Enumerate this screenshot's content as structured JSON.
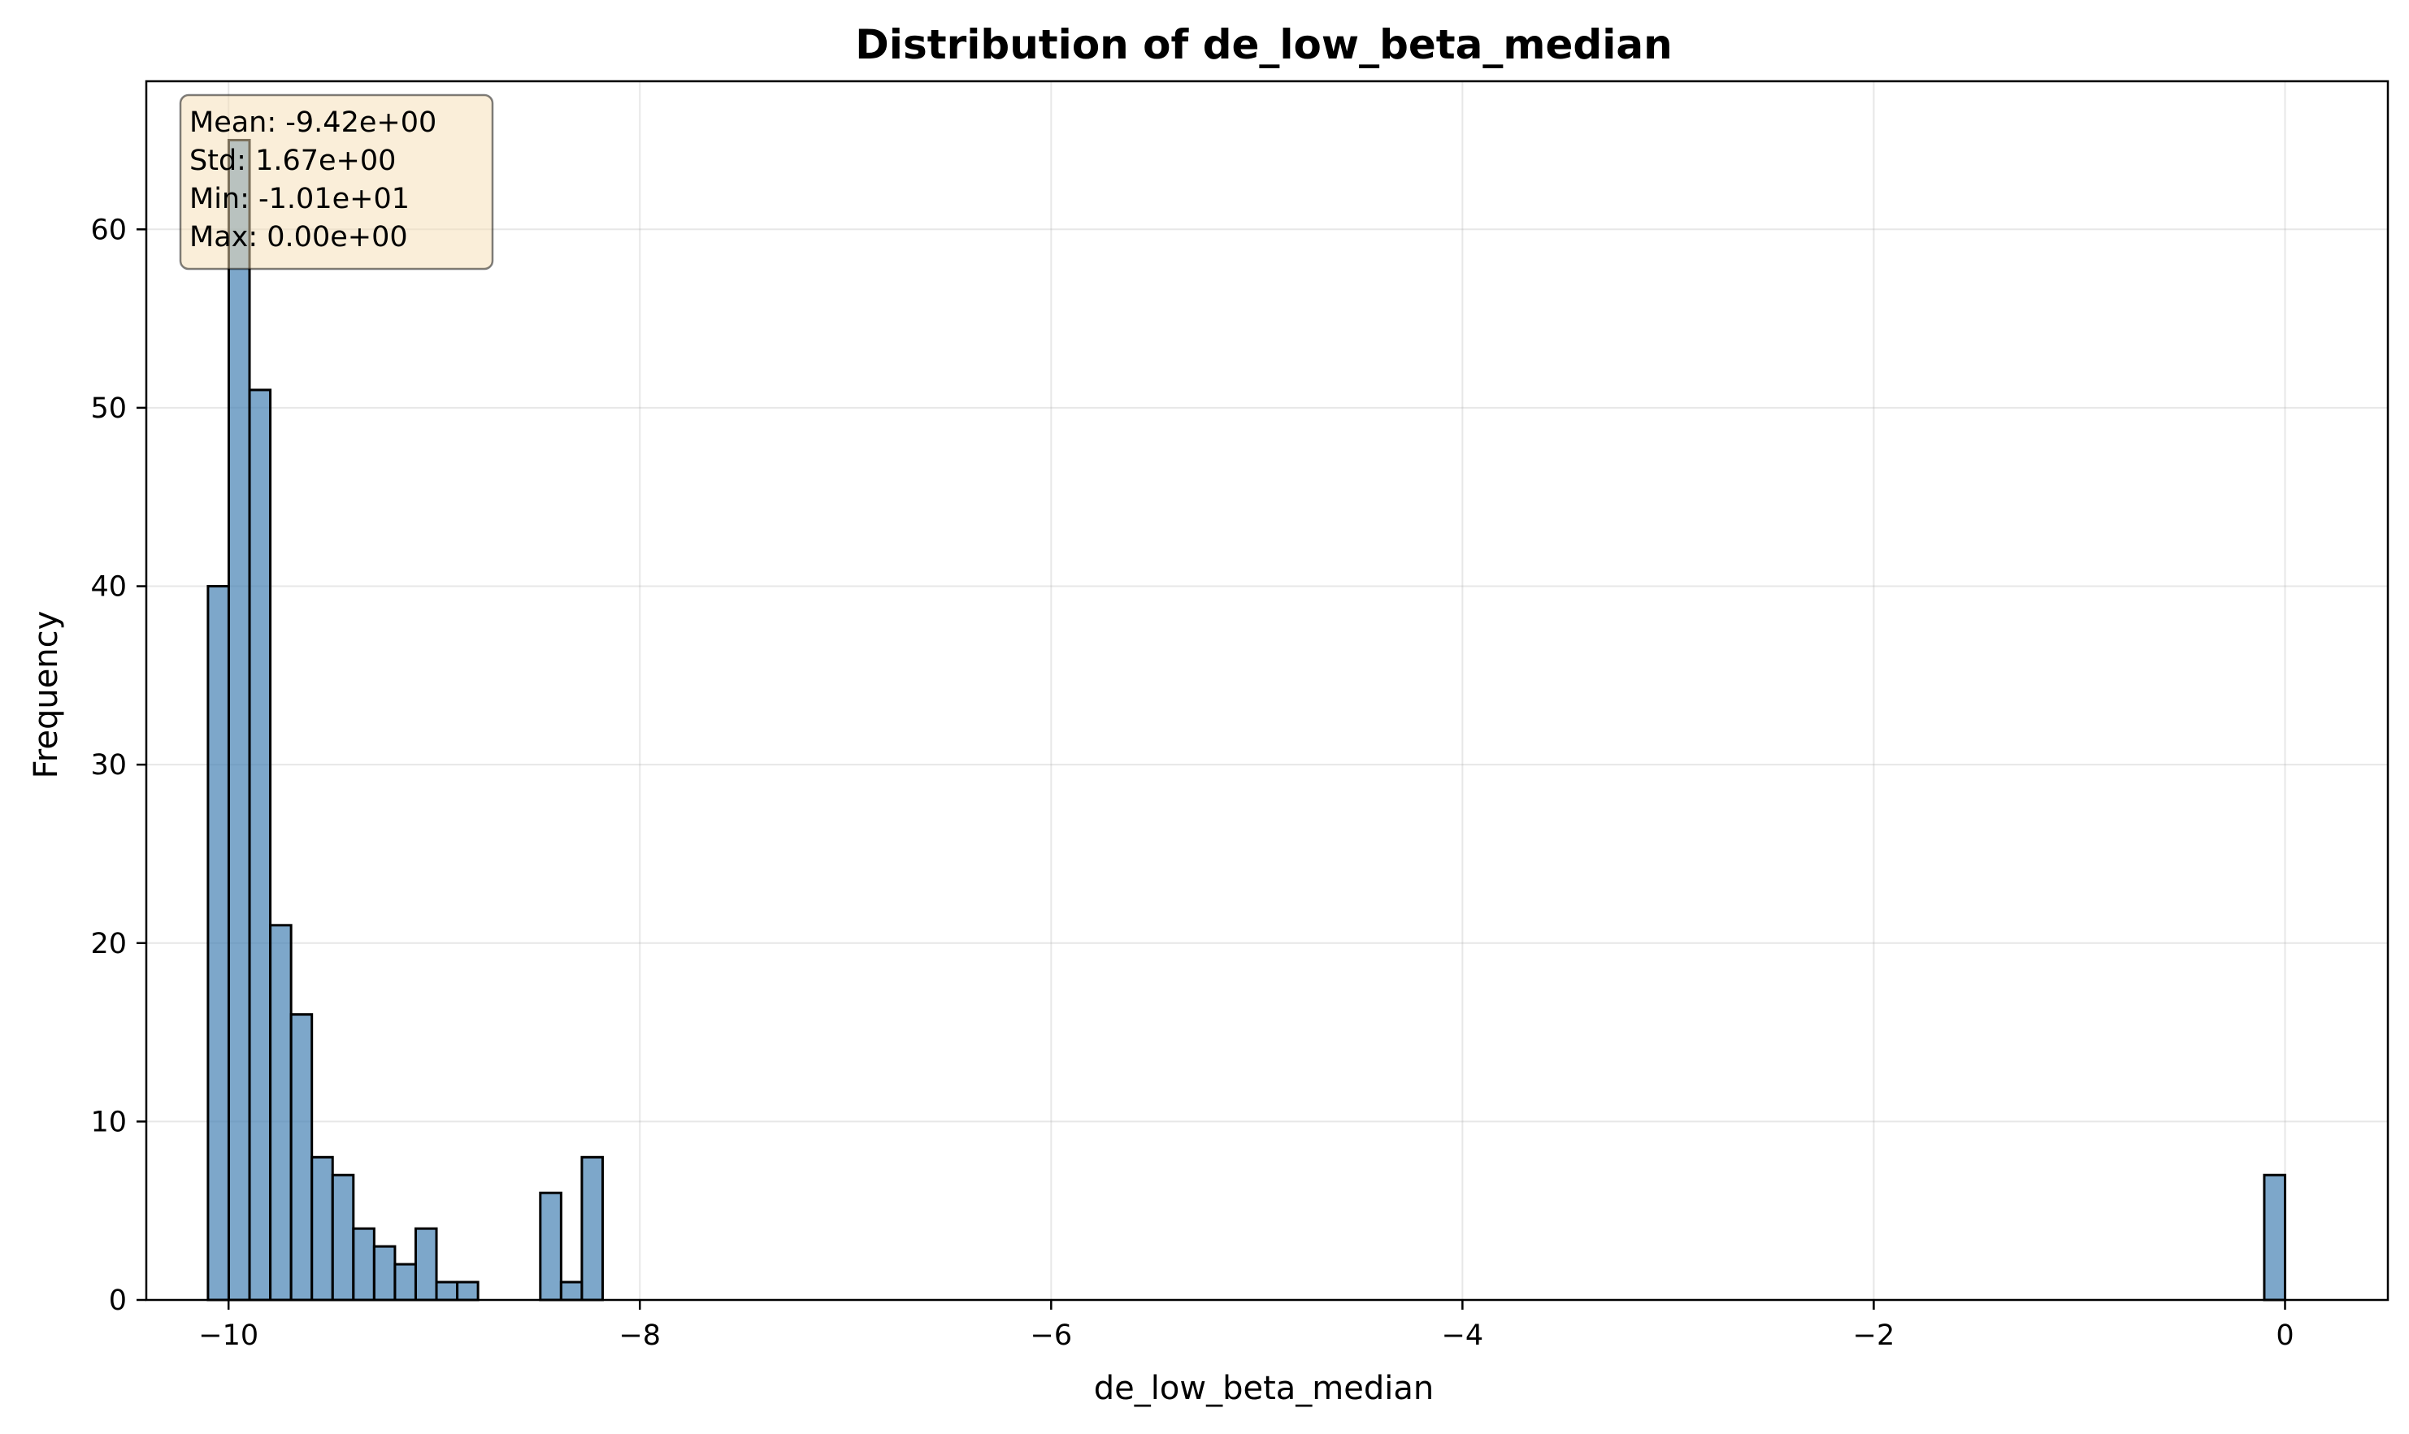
{
  "chart_data": {
    "type": "bar",
    "title": "Distribution of de_low_beta_median",
    "xlabel": "de_low_beta_median",
    "ylabel": "Frequency",
    "xlim": [
      -10.4,
      0.5
    ],
    "ylim": [
      0,
      68.3
    ],
    "grid": true,
    "bar_color": "#4682b4",
    "bar_edge_color": "#000000",
    "x_ticks": [
      {
        "value": -10,
        "label": "−10"
      },
      {
        "value": -8,
        "label": "−8"
      },
      {
        "value": -6,
        "label": "−6"
      },
      {
        "value": -4,
        "label": "−4"
      },
      {
        "value": -2,
        "label": "−2"
      },
      {
        "value": 0,
        "label": "0"
      }
    ],
    "y_ticks": [
      {
        "value": 0,
        "label": "0"
      },
      {
        "value": 10,
        "label": "10"
      },
      {
        "value": 20,
        "label": "20"
      },
      {
        "value": 30,
        "label": "30"
      },
      {
        "value": 40,
        "label": "40"
      },
      {
        "value": 50,
        "label": "50"
      },
      {
        "value": 60,
        "label": "60"
      }
    ],
    "bins": [
      {
        "x0": -10.1,
        "x1": -9.999,
        "value": 40
      },
      {
        "x0": -9.999,
        "x1": -9.898,
        "value": 65
      },
      {
        "x0": -9.898,
        "x1": -9.797,
        "value": 51
      },
      {
        "x0": -9.797,
        "x1": -9.696,
        "value": 21
      },
      {
        "x0": -9.696,
        "x1": -9.595,
        "value": 16
      },
      {
        "x0": -9.595,
        "x1": -9.494,
        "value": 8
      },
      {
        "x0": -9.494,
        "x1": -9.393,
        "value": 7
      },
      {
        "x0": -9.393,
        "x1": -9.292,
        "value": 4
      },
      {
        "x0": -9.292,
        "x1": -9.191,
        "value": 3
      },
      {
        "x0": -9.191,
        "x1": -9.09,
        "value": 2
      },
      {
        "x0": -9.09,
        "x1": -8.989,
        "value": 4
      },
      {
        "x0": -8.989,
        "x1": -8.888,
        "value": 1
      },
      {
        "x0": -8.888,
        "x1": -8.787,
        "value": 1
      },
      {
        "x0": -8.484,
        "x1": -8.383,
        "value": 6
      },
      {
        "x0": -8.383,
        "x1": -8.282,
        "value": 1
      },
      {
        "x0": -8.282,
        "x1": -8.181,
        "value": 8
      },
      {
        "x0": -0.101,
        "x1": 0.0,
        "value": 7
      }
    ],
    "stats_box": {
      "lines": [
        "Mean: -9.42e+00",
        "Std: 1.67e+00",
        "Min: -1.01e+01",
        "Max: 0.00e+00"
      ],
      "background": "#f5deb3",
      "location": "top-left"
    }
  }
}
